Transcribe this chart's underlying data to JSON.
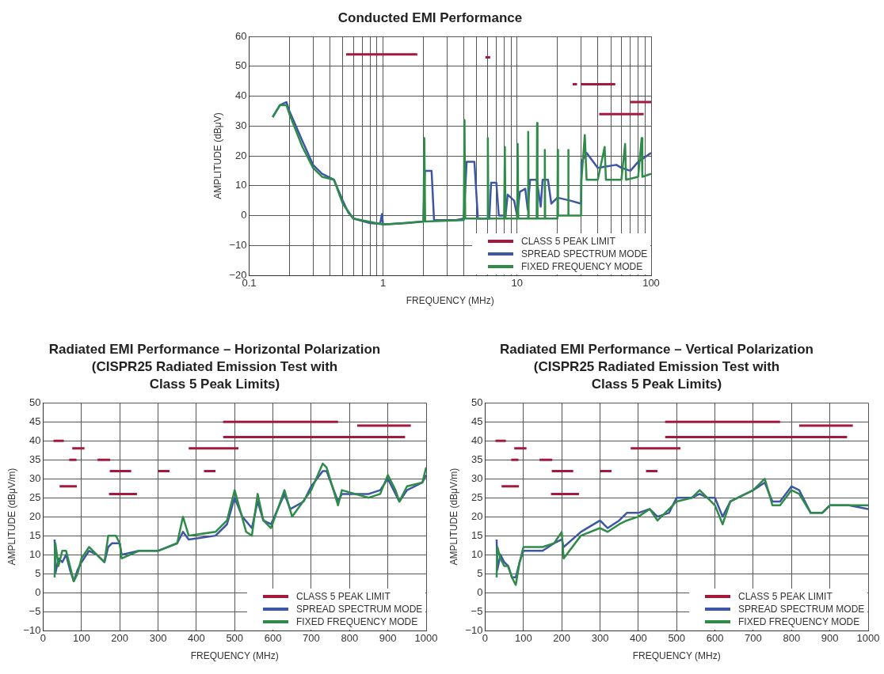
{
  "chart_data": [
    {
      "type": "line",
      "title": "Conducted EMI Performance",
      "xlabel": "FREQUENCY (MHz)",
      "ylabel": "AMPLITUDE (dBμV)",
      "log": "x",
      "grid": true,
      "legend": "bottom right",
      "xlim": [
        0.1,
        100
      ],
      "ylim": [
        -20,
        60
      ],
      "yticks": [
        -20,
        -10,
        0,
        10,
        20,
        30,
        40,
        50,
        60
      ],
      "xticks": [
        0.1,
        {
          "value": 0.2,
          "label": null
        },
        {
          "value": 0.3,
          "label": null
        },
        {
          "value": 0.4,
          "label": null
        },
        {
          "value": 0.5,
          "label": null
        },
        {
          "value": 0.6,
          "label": null
        },
        {
          "value": 0.7,
          "label": null
        },
        {
          "value": 0.8,
          "label": null
        },
        {
          "value": 0.9,
          "label": null
        },
        1,
        {
          "value": 2,
          "label": null
        },
        {
          "value": 3,
          "label": null
        },
        {
          "value": 4,
          "label": null
        },
        {
          "value": 5,
          "label": null
        },
        {
          "value": 6,
          "label": null
        },
        {
          "value": 7,
          "label": null
        },
        {
          "value": 8,
          "label": null
        },
        {
          "value": 9,
          "label": null
        },
        10,
        {
          "value": 20,
          "label": null
        },
        {
          "value": 30,
          "label": null
        },
        {
          "value": 40,
          "label": null
        },
        {
          "value": 50,
          "label": null
        },
        {
          "value": 60,
          "label": null
        },
        {
          "value": 70,
          "label": null
        },
        {
          "value": 80,
          "label": null
        },
        {
          "value": 90,
          "label": null
        },
        100
      ],
      "series": [
        {
          "name": "CLASS 5 PEAK LIMIT",
          "color": "#a31a3d",
          "x": [
            0.53,
            1.8,
            null,
            5.8,
            6.3,
            null,
            26,
            28,
            null,
            30,
            54,
            null,
            41,
            88,
            null,
            70,
            100
          ],
          "values": [
            54,
            54,
            null,
            53,
            53,
            null,
            44,
            44,
            null,
            44,
            44,
            null,
            34,
            34,
            null,
            38,
            38
          ]
        },
        {
          "name": "SPREAD SPECTRUM MODE",
          "color": "#3d56a6",
          "x": [
            0.15,
            0.17,
            0.19,
            0.2,
            0.25,
            0.3,
            0.35,
            0.43,
            0.5,
            0.55,
            0.6,
            0.8,
            0.95,
            0.98,
            1.0,
            1.5,
            2.0,
            2.05,
            2.3,
            2.4,
            3.5,
            4.0,
            4.2,
            4.8,
            5.1,
            6.2,
            6.4,
            7.0,
            7.3,
            8.2,
            8.5,
            9.5,
            10,
            10.5,
            11.5,
            12,
            12.5,
            14,
            15,
            15.5,
            17,
            18,
            20,
            25,
            30,
            30.2,
            33,
            40,
            55,
            60,
            70,
            80,
            100
          ],
          "values": [
            33,
            37,
            38,
            35,
            25,
            17,
            14,
            12,
            5,
            1,
            -1,
            -2.5,
            -2.8,
            0.5,
            -3,
            -2.5,
            -2,
            15,
            15,
            -1.5,
            -1.5,
            -1,
            18,
            18,
            -1,
            -1,
            11,
            11,
            0,
            0,
            7,
            5,
            0,
            8,
            9,
            2,
            12,
            12,
            3,
            12,
            12,
            4,
            6,
            5,
            4,
            18,
            21,
            16,
            17,
            16,
            15,
            18,
            21
          ]
        },
        {
          "name": "FIXED FREQUENCY MODE",
          "color": "#2f8c48",
          "x": [
            0.15,
            0.17,
            0.19,
            0.2,
            0.25,
            0.3,
            0.35,
            0.43,
            0.5,
            0.6,
            1,
            2,
            2.03,
            2.06,
            4,
            4.05,
            4.1,
            6,
            6.05,
            6.1,
            8,
            8.1,
            8.2,
            10,
            10.1,
            10.2,
            12,
            12.1,
            12.2,
            14,
            14.1,
            14.2,
            16,
            16.1,
            16.2,
            20,
            20.1,
            20.2,
            24,
            24.1,
            24.2,
            30,
            30.2,
            32,
            33,
            40,
            45,
            46,
            60,
            64,
            65,
            80,
            85,
            86,
            100
          ],
          "values": [
            33,
            37,
            37,
            34,
            23,
            16,
            13,
            12,
            4,
            -1,
            -3,
            -2,
            26,
            -2,
            -1.5,
            32,
            -1,
            -1,
            26,
            -1,
            -1,
            23,
            -1,
            -1,
            24,
            -1,
            -1,
            28,
            -1,
            -1,
            31,
            -1,
            -1,
            22,
            -1,
            -1,
            22,
            0,
            0,
            22,
            0,
            0,
            12,
            27,
            12,
            12,
            23,
            12,
            12,
            24,
            12,
            13,
            26,
            13,
            14
          ]
        }
      ]
    },
    {
      "type": "line",
      "title": "Radiated EMI Performance – Horizontal Polarization\n(CISPR25 Radiated Emission Test with\nClass 5 Peak Limits)",
      "xlabel": "FREQUENCY (MHz)",
      "ylabel": "AMPLITUDE (dBμV/m)",
      "grid": true,
      "legend": "bottom right",
      "xlim": [
        0,
        1000
      ],
      "xticks": [
        0,
        100,
        200,
        300,
        400,
        500,
        600,
        700,
        800,
        900,
        1000
      ],
      "ylim": [
        -10,
        50
      ],
      "yticks": [
        -10,
        -5,
        0,
        5,
        10,
        15,
        20,
        25,
        30,
        35,
        40,
        45,
        50
      ],
      "series": [
        {
          "name": "CLASS 5 PEAK LIMIT",
          "color": "#a31a3d",
          "x": [
            27,
            54,
            null,
            43,
            88,
            null,
            68,
            87,
            null,
            76,
            108,
            null,
            142,
            175,
            null,
            174,
            230,
            null,
            172,
            245,
            null,
            300,
            330,
            null,
            380,
            510,
            null,
            420,
            450,
            null,
            470,
            770,
            null,
            470,
            945,
            null,
            820,
            960
          ],
          "values": [
            40,
            40,
            null,
            28,
            28,
            null,
            35,
            35,
            null,
            38,
            38,
            null,
            35,
            35,
            null,
            32,
            32,
            null,
            26,
            26,
            null,
            32,
            32,
            null,
            38,
            38,
            null,
            32,
            32,
            null,
            45,
            45,
            null,
            41,
            41,
            null,
            44,
            44
          ]
        },
        {
          "name": "SPREAD SPECTRUM MODE",
          "color": "#3d56a6",
          "x": [
            30,
            32,
            40,
            50,
            60,
            70,
            80,
            90,
            100,
            120,
            140,
            160,
            170,
            180,
            200,
            205,
            250,
            300,
            350,
            365,
            380,
            450,
            480,
            500,
            520,
            545,
            560,
            575,
            595,
            630,
            645,
            680,
            700,
            730,
            740,
            770,
            780,
            850,
            880,
            900,
            920,
            930,
            950,
            990,
            1000
          ],
          "values": [
            14,
            5,
            9,
            8,
            10,
            6,
            3,
            6,
            8,
            11,
            10,
            8,
            12,
            13,
            13,
            10,
            11,
            11,
            13,
            16,
            14,
            15,
            18,
            25,
            20,
            17,
            24,
            19,
            18,
            26,
            22,
            24,
            28,
            32,
            32,
            24,
            26,
            26,
            27,
            30,
            26,
            24,
            27,
            29,
            31
          ]
        },
        {
          "name": "FIXED FREQUENCY MODE",
          "color": "#2f8c48",
          "x": [
            30,
            32,
            40,
            50,
            60,
            70,
            80,
            90,
            100,
            120,
            140,
            160,
            170,
            190,
            200,
            205,
            250,
            300,
            350,
            365,
            380,
            450,
            480,
            500,
            530,
            545,
            560,
            575,
            595,
            630,
            650,
            700,
            730,
            740,
            770,
            780,
            850,
            880,
            900,
            920,
            930,
            950,
            990,
            1000
          ],
          "values": [
            4,
            13,
            7,
            11,
            11,
            7,
            3,
            5,
            9,
            12,
            10,
            8,
            15,
            15,
            13,
            9,
            11,
            11,
            13,
            20,
            15,
            16,
            19,
            27,
            16,
            15,
            26,
            19,
            17,
            27,
            20,
            27,
            34,
            33,
            23,
            27,
            25,
            26,
            31,
            27,
            24,
            28,
            29,
            33
          ]
        }
      ]
    },
    {
      "type": "line",
      "title": "Radiated EMI Performance – Vertical Polarization\n(CISPR25 Radiated Emission Test with\nClass 5 Peak Limits)",
      "xlabel": "FREQUENCY (MHz)",
      "ylabel": "AMPLITUDE (dBμV/m)",
      "grid": true,
      "legend": "bottom right",
      "xlim": [
        0,
        1000
      ],
      "xticks": [
        0,
        100,
        200,
        300,
        400,
        500,
        600,
        700,
        800,
        900,
        1000
      ],
      "ylim": [
        -10,
        50
      ],
      "yticks": [
        -10,
        -5,
        0,
        5,
        10,
        15,
        20,
        25,
        30,
        35,
        40,
        45,
        50
      ],
      "series": [
        {
          "name": "CLASS 5 PEAK LIMIT",
          "color": "#a31a3d",
          "x": [
            27,
            54,
            null,
            43,
            88,
            null,
            68,
            87,
            null,
            76,
            108,
            null,
            142,
            175,
            null,
            174,
            230,
            null,
            172,
            245,
            null,
            300,
            330,
            null,
            380,
            510,
            null,
            420,
            450,
            null,
            470,
            770,
            null,
            470,
            945,
            null,
            820,
            960
          ],
          "values": [
            40,
            40,
            null,
            28,
            28,
            null,
            35,
            35,
            null,
            38,
            38,
            null,
            35,
            35,
            null,
            32,
            32,
            null,
            26,
            26,
            null,
            32,
            32,
            null,
            38,
            38,
            null,
            32,
            32,
            null,
            45,
            45,
            null,
            41,
            41,
            null,
            44,
            44
          ]
        },
        {
          "name": "SPREAD SPECTRUM MODE",
          "color": "#3d56a6",
          "x": [
            30,
            32,
            40,
            50,
            60,
            70,
            80,
            90,
            100,
            150,
            180,
            200,
            205,
            250,
            300,
            320,
            350,
            370,
            400,
            430,
            450,
            480,
            500,
            540,
            560,
            580,
            600,
            620,
            640,
            700,
            730,
            750,
            770,
            800,
            820,
            850,
            880,
            900,
            950,
            1000
          ],
          "values": [
            14,
            6,
            10,
            8,
            7,
            4,
            4,
            8,
            11,
            11,
            13,
            14,
            12,
            16,
            19,
            17,
            19,
            21,
            21,
            22,
            20,
            21,
            25,
            25,
            26,
            25,
            25,
            20,
            24,
            27,
            29,
            24,
            24,
            28,
            27,
            21,
            21,
            23,
            23,
            22
          ]
        },
        {
          "name": "FIXED FREQUENCY MODE",
          "color": "#2f8c48",
          "x": [
            30,
            32,
            40,
            50,
            60,
            70,
            80,
            90,
            100,
            150,
            180,
            200,
            205,
            250,
            300,
            320,
            350,
            370,
            400,
            430,
            450,
            480,
            500,
            540,
            560,
            580,
            600,
            620,
            640,
            700,
            730,
            750,
            770,
            800,
            820,
            850,
            880,
            900,
            950,
            1000
          ],
          "values": [
            4,
            12,
            9,
            7,
            7,
            4,
            2,
            8,
            12,
            12,
            13,
            16,
            9,
            15,
            17,
            16,
            18,
            19,
            20,
            22,
            19,
            22,
            24,
            25,
            27,
            25,
            23,
            18,
            24,
            27,
            30,
            23,
            23,
            27,
            26,
            21,
            21,
            23,
            23,
            23
          ]
        }
      ]
    }
  ]
}
